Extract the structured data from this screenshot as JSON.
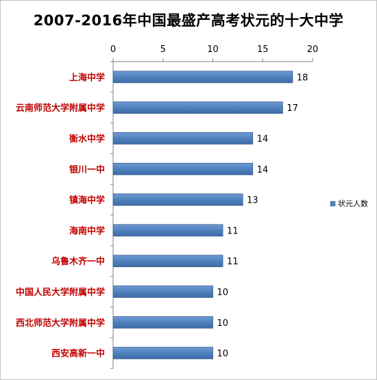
{
  "chart_data": {
    "type": "bar",
    "orientation": "horizontal",
    "title": "2007-2016年中国最盛产高考状元的十大中学",
    "categories": [
      "上海中学",
      "云南师范大学附属中学",
      "衡水中学",
      "银川一中",
      "镇海中学",
      "海南中学",
      "乌鲁木齐一中",
      "中国人民大学附属中学",
      "西北师范大学附属中学",
      "西安高新一中"
    ],
    "series": [
      {
        "name": "状元人数",
        "values": [
          18,
          17,
          14,
          14,
          13,
          11,
          11,
          10,
          10,
          10
        ]
      }
    ],
    "xlim": [
      0,
      20
    ],
    "ticks": [
      0,
      5,
      10,
      15,
      20
    ],
    "tick_position": "top",
    "legend_position": "right",
    "grid": false,
    "colors": {
      "bar": "#4f81bd",
      "bar_edge": "#385d8a",
      "category_text": "#c00000"
    }
  }
}
